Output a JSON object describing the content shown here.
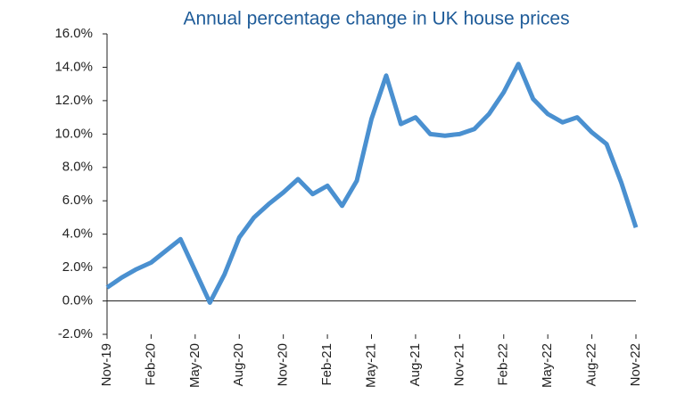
{
  "chart_data": {
    "type": "line",
    "title": "Annual percentage change in UK house prices",
    "categories": [
      "Nov-19",
      null,
      null,
      "Feb-20",
      null,
      null,
      "May-20",
      null,
      null,
      "Aug-20",
      null,
      null,
      "Nov-20",
      null,
      null,
      "Feb-21",
      null,
      null,
      "May-21",
      null,
      null,
      "Aug-21",
      null,
      null,
      "Nov-21",
      null,
      null,
      "Feb-22",
      null,
      null,
      "May-22",
      null,
      null,
      "Aug-22",
      null,
      null,
      "Nov-22"
    ],
    "series": [
      {
        "name": "UK house prices",
        "color": "#4a90d0",
        "values": [
          0.8,
          1.4,
          1.9,
          2.3,
          3.0,
          3.7,
          1.8,
          -0.1,
          1.6,
          3.8,
          5.0,
          5.8,
          6.5,
          7.3,
          6.4,
          6.9,
          5.7,
          7.2,
          10.9,
          13.5,
          10.6,
          11.0,
          10.0,
          9.9,
          10.0,
          10.3,
          11.2,
          12.5,
          14.2,
          12.1,
          11.2,
          10.7,
          11.0,
          10.1,
          9.4,
          7.1,
          4.4
        ]
      }
    ],
    "ylim": [
      -2,
      16
    ],
    "yticks": [
      {
        "value": -2,
        "label": "-2.0%"
      },
      {
        "value": 0,
        "label": "0.0%"
      },
      {
        "value": 2,
        "label": "2.0%"
      },
      {
        "value": 4,
        "label": "4.0%"
      },
      {
        "value": 6,
        "label": "6.0%"
      },
      {
        "value": 8,
        "label": "8.0%"
      },
      {
        "value": 10,
        "label": "10.0%"
      },
      {
        "value": 12,
        "label": "12.0%"
      },
      {
        "value": 14,
        "label": "14.0%"
      },
      {
        "value": 16,
        "label": "16.0%"
      }
    ]
  }
}
